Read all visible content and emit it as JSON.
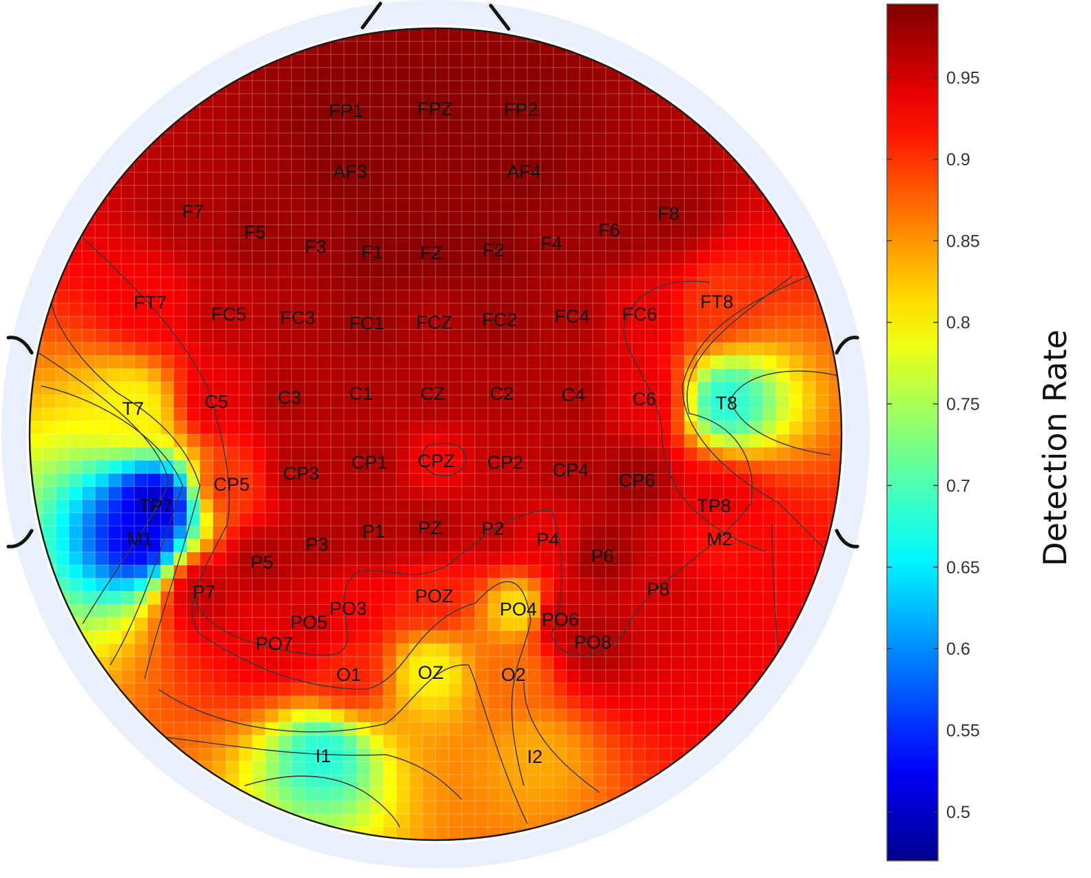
{
  "chart_data": {
    "type": "heatmap",
    "subtype": "EEG scalp topography",
    "title": "",
    "colorbar": {
      "label": "Detection Rate",
      "range": [
        0.47,
        0.995
      ],
      "ticks": [
        0.5,
        0.55,
        0.6,
        0.65,
        0.7,
        0.75,
        0.8,
        0.85,
        0.9,
        0.95
      ],
      "tick_labels": [
        "0.5",
        "0.55",
        "0.6",
        "0.65",
        "0.7",
        "0.75",
        "0.8",
        "0.85",
        "0.9",
        "0.95"
      ],
      "colormap": "jet",
      "colormap_stops": [
        "#00008f",
        "#0000ff",
        "#00ffff",
        "#ffff00",
        "#ff0000",
        "#800000"
      ]
    },
    "grid": true,
    "contours": true,
    "electrodes": [
      {
        "name": "FP1",
        "value": 0.99
      },
      {
        "name": "FPZ",
        "value": 0.99
      },
      {
        "name": "FP2",
        "value": 0.99
      },
      {
        "name": "AF3",
        "value": 0.99
      },
      {
        "name": "AF4",
        "value": 0.99
      },
      {
        "name": "F7",
        "value": 0.97
      },
      {
        "name": "F5",
        "value": 0.98
      },
      {
        "name": "F3",
        "value": 0.98
      },
      {
        "name": "F1",
        "value": 0.99
      },
      {
        "name": "FZ",
        "value": 0.99
      },
      {
        "name": "F2",
        "value": 0.99
      },
      {
        "name": "F4",
        "value": 0.98
      },
      {
        "name": "F6",
        "value": 0.98
      },
      {
        "name": "F8",
        "value": 0.98
      },
      {
        "name": "FT7",
        "value": 0.93
      },
      {
        "name": "FC5",
        "value": 0.96
      },
      {
        "name": "FC3",
        "value": 0.97
      },
      {
        "name": "FC1",
        "value": 0.98
      },
      {
        "name": "FCZ",
        "value": 0.97
      },
      {
        "name": "FC2",
        "value": 0.98
      },
      {
        "name": "FC4",
        "value": 0.97
      },
      {
        "name": "FC6",
        "value": 0.94
      },
      {
        "name": "FT8",
        "value": 0.9
      },
      {
        "name": "T7",
        "value": 0.8
      },
      {
        "name": "C5",
        "value": 0.94
      },
      {
        "name": "C3",
        "value": 0.97
      },
      {
        "name": "C1",
        "value": 0.97
      },
      {
        "name": "CZ",
        "value": 0.97
      },
      {
        "name": "C2",
        "value": 0.97
      },
      {
        "name": "C4",
        "value": 0.97
      },
      {
        "name": "C6",
        "value": 0.94
      },
      {
        "name": "T8",
        "value": 0.68
      },
      {
        "name": "CP5",
        "value": 0.9
      },
      {
        "name": "CP3",
        "value": 0.97
      },
      {
        "name": "CP1",
        "value": 0.97
      },
      {
        "name": "CPZ",
        "value": 0.93
      },
      {
        "name": "CP2",
        "value": 0.96
      },
      {
        "name": "CP4",
        "value": 0.97
      },
      {
        "name": "CP6",
        "value": 0.98
      },
      {
        "name": "TP7",
        "value": 0.5
      },
      {
        "name": "TP8",
        "value": 0.94
      },
      {
        "name": "M1",
        "value": 0.52
      },
      {
        "name": "M2",
        "value": 0.92
      },
      {
        "name": "P7",
        "value": 0.96
      },
      {
        "name": "P5",
        "value": 0.97
      },
      {
        "name": "P3",
        "value": 0.97
      },
      {
        "name": "P1",
        "value": 0.97
      },
      {
        "name": "PZ",
        "value": 0.97
      },
      {
        "name": "P2",
        "value": 0.96
      },
      {
        "name": "P4",
        "value": 0.94
      },
      {
        "name": "P6",
        "value": 0.98
      },
      {
        "name": "P8",
        "value": 0.95
      },
      {
        "name": "PO7",
        "value": 0.94
      },
      {
        "name": "PO5",
        "value": 0.95
      },
      {
        "name": "PO3",
        "value": 0.93
      },
      {
        "name": "POZ",
        "value": 0.91
      },
      {
        "name": "PO4",
        "value": 0.81
      },
      {
        "name": "PO6",
        "value": 0.96
      },
      {
        "name": "PO8",
        "value": 0.97
      },
      {
        "name": "O1",
        "value": 0.91
      },
      {
        "name": "OZ",
        "value": 0.8
      },
      {
        "name": "O2",
        "value": 0.87
      },
      {
        "name": "I1",
        "value": 0.68
      },
      {
        "name": "I2",
        "value": 0.84
      }
    ]
  }
}
